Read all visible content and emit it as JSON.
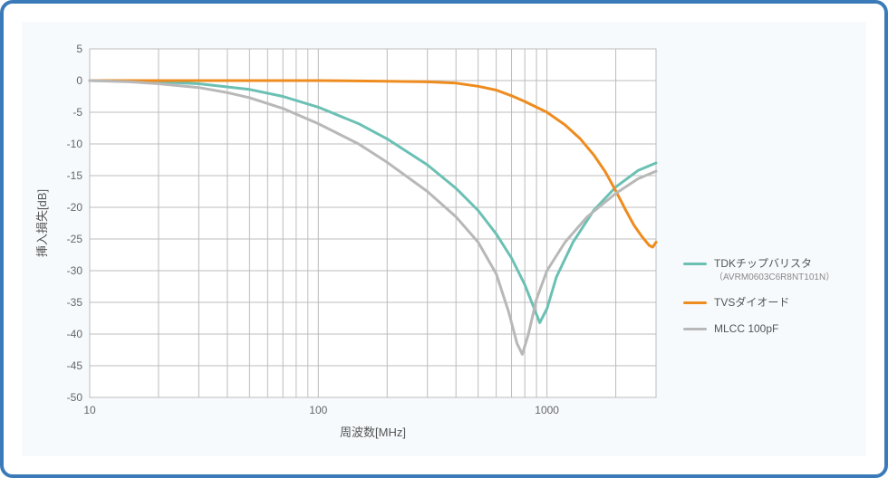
{
  "chart": {
    "type": "line",
    "background_color": "#f7fafd",
    "plot_background": "#ffffff",
    "border_color": "#3b7ab8",
    "grid_color": "#bcbcbc",
    "line_width": 3,
    "x_axis": {
      "label": "周波数[MHz]",
      "scale": "log",
      "min": 10,
      "max": 3000,
      "ticks": [
        10,
        100,
        1000
      ],
      "minor_per_decade": [
        2,
        3,
        4,
        5,
        6,
        7,
        8,
        9
      ]
    },
    "y_axis": {
      "label": "挿入損失[dB]",
      "min": -50,
      "max": 5,
      "tick_step": 5,
      "ticks": [
        5,
        0,
        -5,
        -10,
        -15,
        -20,
        -25,
        -30,
        -35,
        -40,
        -45,
        -50
      ]
    },
    "series": [
      {
        "name": "TDKチップバリスタ",
        "sub": "（AVRM0603C6R8NT101N）",
        "color": "#6bc0b4",
        "points": [
          [
            10,
            0
          ],
          [
            15,
            -0.1
          ],
          [
            20,
            -0.2
          ],
          [
            30,
            -0.5
          ],
          [
            40,
            -1.0
          ],
          [
            50,
            -1.4
          ],
          [
            70,
            -2.5
          ],
          [
            100,
            -4.2
          ],
          [
            150,
            -6.8
          ],
          [
            200,
            -9.2
          ],
          [
            300,
            -13.3
          ],
          [
            400,
            -17.0
          ],
          [
            500,
            -20.5
          ],
          [
            600,
            -24.2
          ],
          [
            700,
            -28.0
          ],
          [
            800,
            -32.2
          ],
          [
            880,
            -36.0
          ],
          [
            930,
            -38.2
          ],
          [
            1000,
            -36.0
          ],
          [
            1100,
            -31.0
          ],
          [
            1300,
            -25.5
          ],
          [
            1600,
            -20.5
          ],
          [
            2000,
            -16.8
          ],
          [
            2500,
            -14.2
          ],
          [
            3000,
            -13.0
          ]
        ]
      },
      {
        "name": "TVSダイオード",
        "sub": "",
        "color": "#ee8c1f",
        "points": [
          [
            10,
            0
          ],
          [
            50,
            0
          ],
          [
            100,
            0
          ],
          [
            200,
            -0.1
          ],
          [
            300,
            -0.2
          ],
          [
            400,
            -0.4
          ],
          [
            500,
            -0.9
          ],
          [
            600,
            -1.5
          ],
          [
            700,
            -2.4
          ],
          [
            800,
            -3.3
          ],
          [
            900,
            -4.2
          ],
          [
            1000,
            -5.0
          ],
          [
            1200,
            -7.0
          ],
          [
            1400,
            -9.2
          ],
          [
            1600,
            -11.7
          ],
          [
            1800,
            -14.4
          ],
          [
            2000,
            -17.4
          ],
          [
            2200,
            -20.3
          ],
          [
            2400,
            -22.8
          ],
          [
            2600,
            -24.6
          ],
          [
            2800,
            -26.0
          ],
          [
            2900,
            -26.3
          ],
          [
            3000,
            -25.5
          ]
        ]
      },
      {
        "name": "MLCC 100pF",
        "sub": "",
        "color": "#b8b8b8",
        "points": [
          [
            10,
            0
          ],
          [
            15,
            -0.2
          ],
          [
            20,
            -0.5
          ],
          [
            30,
            -1.1
          ],
          [
            40,
            -1.9
          ],
          [
            50,
            -2.7
          ],
          [
            70,
            -4.4
          ],
          [
            100,
            -6.8
          ],
          [
            150,
            -10.0
          ],
          [
            200,
            -12.9
          ],
          [
            300,
            -17.5
          ],
          [
            400,
            -21.5
          ],
          [
            500,
            -25.5
          ],
          [
            600,
            -30.5
          ],
          [
            680,
            -36.5
          ],
          [
            740,
            -41.5
          ],
          [
            780,
            -43.2
          ],
          [
            830,
            -40.0
          ],
          [
            900,
            -34.5
          ],
          [
            1000,
            -30.0
          ],
          [
            1200,
            -25.5
          ],
          [
            1500,
            -21.5
          ],
          [
            2000,
            -17.8
          ],
          [
            2500,
            -15.5
          ],
          [
            3000,
            -14.3
          ]
        ]
      }
    ],
    "font_size_axis": 12,
    "font_size_title": 13
  }
}
